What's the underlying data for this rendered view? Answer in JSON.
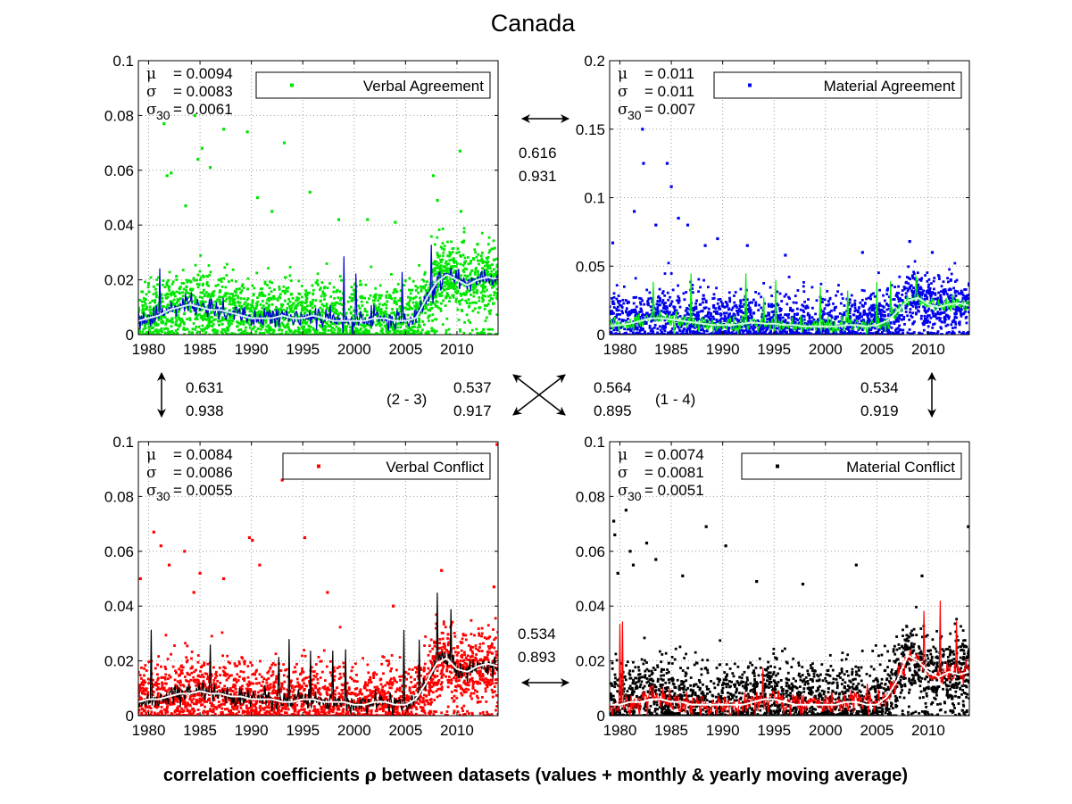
{
  "figure": {
    "title": "Canada",
    "caption_pre": "correlation coefficients ",
    "caption_symbol": "ρ",
    "caption_post": " between datasets (values + monthly & yearly moving average)"
  },
  "correlations": {
    "top": {
      "rho_values": "0.616",
      "rho_avg": "0.931"
    },
    "left": {
      "rho_values": "0.631",
      "rho_avg": "0.938"
    },
    "right": {
      "rho_values": "0.534",
      "rho_avg": "0.919"
    },
    "bottom": {
      "rho_values": "0.534",
      "rho_avg": "0.893"
    },
    "diag_2_3": {
      "pair": "(2 - 3)",
      "rho_values": "0.537",
      "rho_avg": "0.917"
    },
    "diag_1_4": {
      "pair": "(1 - 4)",
      "rho_values": "0.564",
      "rho_avg": "0.895"
    }
  },
  "chart_data": [
    {
      "type": "scatter",
      "title": "",
      "series_name": "Verbal Agreement",
      "colors": {
        "points": "#00e600",
        "monthly": "#0000cc",
        "yearly": "#d9f0ff"
      },
      "stats": {
        "mu": "= 0.0094",
        "sigma": "= 0.0083",
        "sigma30": "= 0.0061"
      },
      "xlim": [
        1979,
        2014
      ],
      "ylim": [
        0,
        0.1
      ],
      "xticks": [
        1980,
        1985,
        1990,
        1995,
        2000,
        2005,
        2010
      ],
      "xtick_labels": [
        "1980",
        "1985",
        "1990",
        "1995",
        "2000",
        "2005",
        "2010"
      ],
      "yticks": [
        0,
        0.02,
        0.04,
        0.06,
        0.08,
        0.1
      ],
      "ytick_labels": [
        "0",
        "0.02",
        "0.04",
        "0.06",
        "0.08",
        "0.1"
      ],
      "trend": [
        [
          1979,
          0.005
        ],
        [
          1980,
          0.006
        ],
        [
          1981,
          0.007
        ],
        [
          1982,
          0.009
        ],
        [
          1983,
          0.01
        ],
        [
          1984,
          0.011
        ],
        [
          1985,
          0.01
        ],
        [
          1986,
          0.009
        ],
        [
          1987,
          0.009
        ],
        [
          1988,
          0.008
        ],
        [
          1989,
          0.007
        ],
        [
          1990,
          0.006
        ],
        [
          1991,
          0.006
        ],
        [
          1992,
          0.006
        ],
        [
          1993,
          0.007
        ],
        [
          1994,
          0.006
        ],
        [
          1995,
          0.006
        ],
        [
          1996,
          0.007
        ],
        [
          1997,
          0.006
        ],
        [
          1998,
          0.005
        ],
        [
          1999,
          0.005
        ],
        [
          2000,
          0.005
        ],
        [
          2001,
          0.005
        ],
        [
          2002,
          0.006
        ],
        [
          2003,
          0.006
        ],
        [
          2004,
          0.005
        ],
        [
          2005,
          0.005
        ],
        [
          2006,
          0.006
        ],
        [
          2007,
          0.013
        ],
        [
          2008,
          0.019
        ],
        [
          2009,
          0.022
        ],
        [
          2010,
          0.02
        ],
        [
          2011,
          0.018
        ],
        [
          2012,
          0.02
        ],
        [
          2013,
          0.021
        ],
        [
          2014,
          0.02
        ]
      ],
      "noise": 0.0065,
      "outliers": [
        [
          1981.5,
          0.077
        ],
        [
          1981.8,
          0.058
        ],
        [
          1982.2,
          0.059
        ],
        [
          1983.6,
          0.047
        ],
        [
          1984.5,
          0.08
        ],
        [
          1984.8,
          0.064
        ],
        [
          1985.2,
          0.068
        ],
        [
          1986.0,
          0.061
        ],
        [
          1987.3,
          0.075
        ],
        [
          1989.6,
          0.074
        ],
        [
          1990.6,
          0.05
        ],
        [
          1992.0,
          0.045
        ],
        [
          1993.2,
          0.07
        ],
        [
          1995.7,
          0.052
        ],
        [
          1998.5,
          0.042
        ],
        [
          2001.3,
          0.042
        ],
        [
          2004.0,
          0.041
        ],
        [
          2007.7,
          0.058
        ],
        [
          2008.1,
          0.049
        ],
        [
          2010.3,
          0.067
        ],
        [
          2010.4,
          0.045
        ],
        [
          2012.0,
          0.033
        ]
      ]
    },
    {
      "type": "scatter",
      "title": "",
      "series_name": "Material Agreement",
      "colors": {
        "points": "#0000ee",
        "monthly": "#00ee00",
        "yearly": "#c8ffd8"
      },
      "stats": {
        "mu": "= 0.011",
        "sigma": "= 0.011",
        "sigma30": "= 0.007"
      },
      "xlim": [
        1979,
        2014
      ],
      "ylim": [
        0,
        0.2
      ],
      "xticks": [
        1980,
        1985,
        1990,
        1995,
        2000,
        2005,
        2010
      ],
      "xtick_labels": [
        "1980",
        "1985",
        "1990",
        "1995",
        "2000",
        "2005",
        "2010"
      ],
      "yticks": [
        0,
        0.05,
        0.1,
        0.15,
        0.2
      ],
      "ytick_labels": [
        "0",
        "0.05",
        "0.1",
        "0.15",
        "0.2"
      ],
      "trend": [
        [
          1979,
          0.006
        ],
        [
          1980,
          0.007
        ],
        [
          1981,
          0.008
        ],
        [
          1982,
          0.01
        ],
        [
          1983,
          0.012
        ],
        [
          1984,
          0.012
        ],
        [
          1985,
          0.011
        ],
        [
          1986,
          0.01
        ],
        [
          1987,
          0.009
        ],
        [
          1988,
          0.008
        ],
        [
          1989,
          0.007
        ],
        [
          1990,
          0.007
        ],
        [
          1991,
          0.007
        ],
        [
          1992,
          0.008
        ],
        [
          1993,
          0.009
        ],
        [
          1994,
          0.008
        ],
        [
          1995,
          0.008
        ],
        [
          1996,
          0.007
        ],
        [
          1997,
          0.007
        ],
        [
          1998,
          0.006
        ],
        [
          1999,
          0.006
        ],
        [
          2000,
          0.006
        ],
        [
          2001,
          0.006
        ],
        [
          2002,
          0.007
        ],
        [
          2003,
          0.007
        ],
        [
          2004,
          0.006
        ],
        [
          2005,
          0.007
        ],
        [
          2006,
          0.01
        ],
        [
          2007,
          0.017
        ],
        [
          2008,
          0.025
        ],
        [
          2009,
          0.027
        ],
        [
          2010,
          0.022
        ],
        [
          2011,
          0.02
        ],
        [
          2012,
          0.022
        ],
        [
          2013,
          0.023
        ],
        [
          2014,
          0.021
        ]
      ],
      "noise": 0.011,
      "outliers": [
        [
          1979.3,
          0.067
        ],
        [
          1981.4,
          0.09
        ],
        [
          1982.2,
          0.15
        ],
        [
          1982.3,
          0.125
        ],
        [
          1983.5,
          0.08
        ],
        [
          1984.6,
          0.125
        ],
        [
          1985.0,
          0.108
        ],
        [
          1985.7,
          0.085
        ],
        [
          1986.6,
          0.08
        ],
        [
          1988.3,
          0.065
        ],
        [
          1989.5,
          0.07
        ],
        [
          1992.4,
          0.065
        ],
        [
          1996.1,
          0.058
        ],
        [
          2003.6,
          0.06
        ],
        [
          2008.2,
          0.068
        ],
        [
          2010.4,
          0.06
        ],
        [
          2012.2,
          0.04
        ]
      ]
    },
    {
      "type": "scatter",
      "title": "",
      "series_name": "Verbal Conflict",
      "colors": {
        "points": "#ff0000",
        "monthly": "#000000",
        "yearly": "#ffffff"
      },
      "stats": {
        "mu": "= 0.0084",
        "sigma": "= 0.0086",
        "sigma30": "= 0.0055"
      },
      "xlim": [
        1979,
        2014
      ],
      "ylim": [
        0,
        0.1
      ],
      "xticks": [
        1980,
        1985,
        1990,
        1995,
        2000,
        2005,
        2010
      ],
      "xtick_labels": [
        "1980",
        "1985",
        "1990",
        "1995",
        "2000",
        "2005",
        "2010"
      ],
      "yticks": [
        0,
        0.02,
        0.04,
        0.06,
        0.08,
        0.1
      ],
      "ytick_labels": [
        "0",
        "0.02",
        "0.04",
        "0.06",
        "0.08",
        "0.1"
      ],
      "trend": [
        [
          1979,
          0.005
        ],
        [
          1980,
          0.006
        ],
        [
          1981,
          0.006
        ],
        [
          1982,
          0.007
        ],
        [
          1983,
          0.008
        ],
        [
          1984,
          0.008
        ],
        [
          1985,
          0.009
        ],
        [
          1986,
          0.008
        ],
        [
          1987,
          0.008
        ],
        [
          1988,
          0.007
        ],
        [
          1989,
          0.007
        ],
        [
          1990,
          0.006
        ],
        [
          1991,
          0.006
        ],
        [
          1992,
          0.006
        ],
        [
          1993,
          0.005
        ],
        [
          1994,
          0.005
        ],
        [
          1995,
          0.006
        ],
        [
          1996,
          0.006
        ],
        [
          1997,
          0.005
        ],
        [
          1998,
          0.005
        ],
        [
          1999,
          0.005
        ],
        [
          2000,
          0.004
        ],
        [
          2001,
          0.004
        ],
        [
          2002,
          0.005
        ],
        [
          2003,
          0.005
        ],
        [
          2004,
          0.004
        ],
        [
          2005,
          0.004
        ],
        [
          2006,
          0.006
        ],
        [
          2007,
          0.012
        ],
        [
          2008,
          0.019
        ],
        [
          2009,
          0.021
        ],
        [
          2010,
          0.017
        ],
        [
          2011,
          0.016
        ],
        [
          2012,
          0.018
        ],
        [
          2013,
          0.019
        ],
        [
          2014,
          0.018
        ]
      ],
      "noise": 0.0068,
      "outliers": [
        [
          1979.2,
          0.05
        ],
        [
          1980.5,
          0.067
        ],
        [
          1981.2,
          0.062
        ],
        [
          1982.0,
          0.055
        ],
        [
          1983.5,
          0.06
        ],
        [
          1984.4,
          0.045
        ],
        [
          1985.0,
          0.052
        ],
        [
          1987.3,
          0.05
        ],
        [
          1989.8,
          0.065
        ],
        [
          1990.1,
          0.064
        ],
        [
          1990.8,
          0.055
        ],
        [
          1993.0,
          0.086
        ],
        [
          1995.2,
          0.065
        ],
        [
          1997.4,
          0.045
        ],
        [
          2003.8,
          0.04
        ],
        [
          2008.5,
          0.053
        ],
        [
          2013.9,
          0.099
        ],
        [
          2013.6,
          0.047
        ]
      ]
    },
    {
      "type": "scatter",
      "title": "",
      "series_name": "Material Conflict",
      "colors": {
        "points": "#000000",
        "monthly": "#ff0000",
        "yearly": "#ffffff"
      },
      "stats": {
        "mu": "= 0.0074",
        "sigma": "= 0.0081",
        "sigma30": "= 0.0051"
      },
      "xlim": [
        1979,
        2014
      ],
      "ylim": [
        0,
        0.1
      ],
      "xticks": [
        1980,
        1985,
        1990,
        1995,
        2000,
        2005,
        2010
      ],
      "xtick_labels": [
        "1980",
        "1985",
        "1990",
        "1995",
        "2000",
        "2005",
        "2010"
      ],
      "yticks": [
        0,
        0.02,
        0.04,
        0.06,
        0.08,
        0.1
      ],
      "ytick_labels": [
        "0",
        "0.02",
        "0.04",
        "0.06",
        "0.08",
        "0.1"
      ],
      "trend": [
        [
          1979,
          0.004
        ],
        [
          1980,
          0.004
        ],
        [
          1981,
          0.005
        ],
        [
          1982,
          0.005
        ],
        [
          1983,
          0.006
        ],
        [
          1984,
          0.006
        ],
        [
          1985,
          0.005
        ],
        [
          1986,
          0.005
        ],
        [
          1987,
          0.004
        ],
        [
          1988,
          0.004
        ],
        [
          1989,
          0.004
        ],
        [
          1990,
          0.004
        ],
        [
          1991,
          0.004
        ],
        [
          1992,
          0.004
        ],
        [
          1993,
          0.005
        ],
        [
          1994,
          0.006
        ],
        [
          1995,
          0.006
        ],
        [
          1996,
          0.005
        ],
        [
          1997,
          0.004
        ],
        [
          1998,
          0.004
        ],
        [
          1999,
          0.004
        ],
        [
          2000,
          0.004
        ],
        [
          2001,
          0.004
        ],
        [
          2002,
          0.005
        ],
        [
          2003,
          0.005
        ],
        [
          2004,
          0.004
        ],
        [
          2005,
          0.004
        ],
        [
          2006,
          0.007
        ],
        [
          2007,
          0.013
        ],
        [
          2008,
          0.022
        ],
        [
          2009,
          0.02
        ],
        [
          2010,
          0.016
        ],
        [
          2011,
          0.014
        ],
        [
          2012,
          0.016
        ],
        [
          2013,
          0.015
        ],
        [
          2014,
          0.016
        ]
      ],
      "noise": 0.0075,
      "outliers": [
        [
          1979.4,
          0.071
        ],
        [
          1979.5,
          0.066
        ],
        [
          1979.8,
          0.052
        ],
        [
          1980.6,
          0.075
        ],
        [
          1981.0,
          0.06
        ],
        [
          1981.3,
          0.055
        ],
        [
          1982.6,
          0.063
        ],
        [
          1983.5,
          0.057
        ],
        [
          1986.1,
          0.051
        ],
        [
          1988.4,
          0.069
        ],
        [
          1990.3,
          0.062
        ],
        [
          1993.3,
          0.049
        ],
        [
          1997.8,
          0.048
        ],
        [
          2003.0,
          0.055
        ],
        [
          2009.4,
          0.051
        ],
        [
          2013.9,
          0.069
        ]
      ]
    }
  ]
}
